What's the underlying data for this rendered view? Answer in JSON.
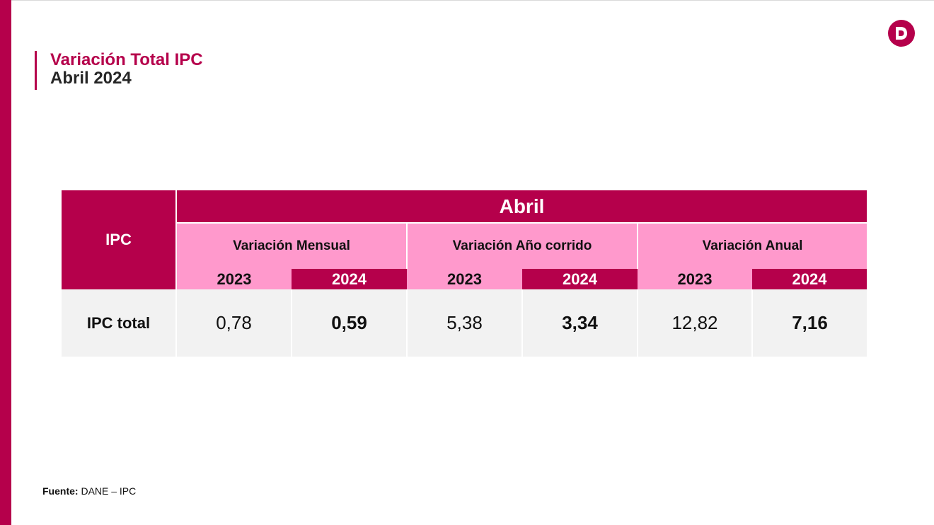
{
  "header": {
    "title": "Variación Total IPC",
    "subtitle": "Abril 2024",
    "logo_letter": "D",
    "logo_icon": "dane-logo-icon"
  },
  "colors": {
    "primary": "#b5004b",
    "pink": "#ff99cc",
    "row_bg": "#f2f2f2",
    "dark_text": "#262626"
  },
  "table": {
    "corner_label": "IPC",
    "period_label": "Abril",
    "groups": [
      "Variación Mensual",
      "Variación Año corrido",
      "Variación Anual"
    ],
    "years": [
      "2023",
      "2024",
      "2023",
      "2024",
      "2023",
      "2024"
    ],
    "row_label": "IPC total",
    "values": [
      "0,78",
      "0,59",
      "5,38",
      "3,34",
      "12,82",
      "7,16"
    ]
  },
  "footer": {
    "source_label": "Fuente:",
    "source_text": "DANE – IPC"
  }
}
